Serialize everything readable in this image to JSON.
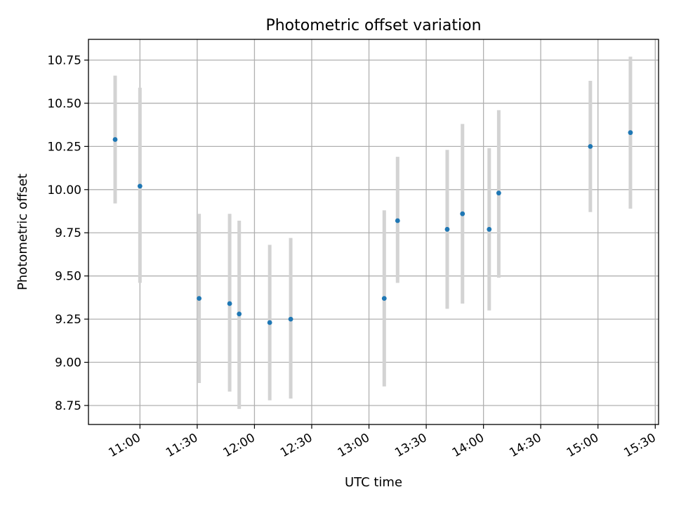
{
  "chart_data": {
    "type": "scatter",
    "title": "Photometric offset variation",
    "xlabel": "UTC time",
    "ylabel": "Photometric offset",
    "x_unit": "time of day (HH:MM)",
    "xlim": [
      "10:47",
      "15:31"
    ],
    "ylim": [
      8.64,
      10.87
    ],
    "grid": true,
    "x_ticks": [
      "11:00",
      "11:30",
      "12:00",
      "12:30",
      "13:00",
      "13:30",
      "14:00",
      "14:30",
      "15:00",
      "15:30"
    ],
    "y_ticks": [
      "8.75",
      "9.00",
      "9.25",
      "9.50",
      "9.75",
      "10.00",
      "10.25",
      "10.50",
      "10.75"
    ],
    "series": [
      {
        "marker_color": "#1f77b4",
        "errorbar_color": "#d3d3d3",
        "points": [
          {
            "x": "10:47",
            "y": 10.29,
            "ylow": 9.92,
            "yhigh": 10.66
          },
          {
            "x": "11:00",
            "y": 10.02,
            "ylow": 9.46,
            "yhigh": 10.59
          },
          {
            "x": "11:31",
            "y": 9.37,
            "ylow": 8.88,
            "yhigh": 9.86
          },
          {
            "x": "11:47",
            "y": 9.34,
            "ylow": 8.83,
            "yhigh": 9.86
          },
          {
            "x": "11:52",
            "y": 9.28,
            "ylow": 8.73,
            "yhigh": 9.82
          },
          {
            "x": "12:08",
            "y": 9.23,
            "ylow": 8.78,
            "yhigh": 9.68
          },
          {
            "x": "12:19",
            "y": 9.25,
            "ylow": 8.79,
            "yhigh": 9.72
          },
          {
            "x": "13:08",
            "y": 9.37,
            "ylow": 8.86,
            "yhigh": 9.88
          },
          {
            "x": "13:15",
            "y": 9.82,
            "ylow": 9.46,
            "yhigh": 10.19
          },
          {
            "x": "13:41",
            "y": 9.77,
            "ylow": 9.31,
            "yhigh": 10.23
          },
          {
            "x": "13:49",
            "y": 9.86,
            "ylow": 9.34,
            "yhigh": 10.38
          },
          {
            "x": "14:03",
            "y": 9.77,
            "ylow": 9.3,
            "yhigh": 10.24
          },
          {
            "x": "14:08",
            "y": 9.98,
            "ylow": 9.49,
            "yhigh": 10.46
          },
          {
            "x": "14:56",
            "y": 10.25,
            "ylow": 9.87,
            "yhigh": 10.63
          },
          {
            "x": "15:17",
            "y": 10.33,
            "ylow": 9.89,
            "yhigh": 10.77
          }
        ]
      }
    ]
  }
}
